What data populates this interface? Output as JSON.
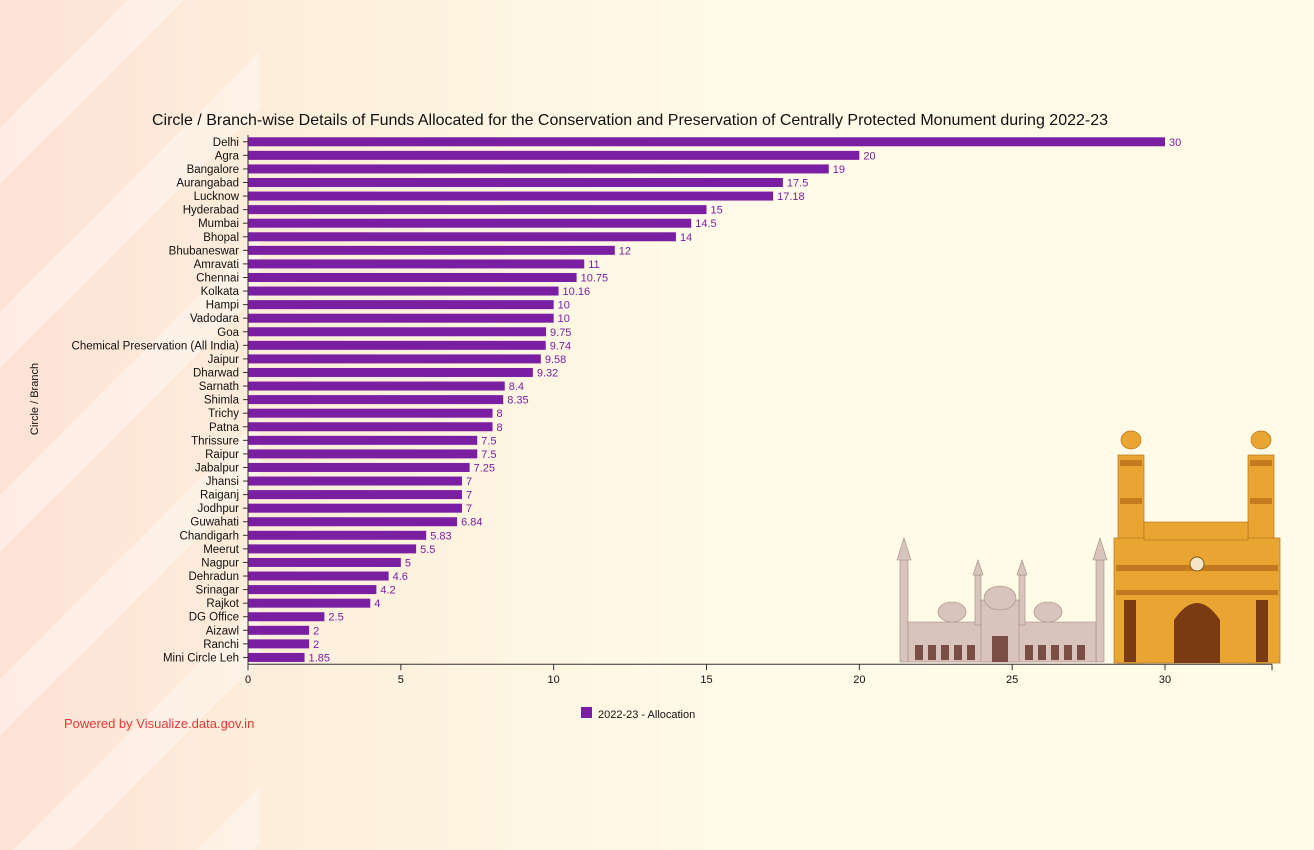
{
  "credit": "Powered by Visualize.data.gov.in",
  "chart_data": {
    "type": "bar",
    "orientation": "horizontal",
    "title": "Circle / Branch-wise Details of Funds Allocated for the Conservation and Preservation of Centrally Protected Monument during 2022-23",
    "xlabel": "",
    "ylabel": "Circle / Branch",
    "xlim": [
      0,
      33.5
    ],
    "xticks": [
      0,
      5,
      10,
      15,
      20,
      25,
      30
    ],
    "grid": false,
    "legend_position": "bottom-center",
    "bar_color": "#7b1fa2",
    "categories": [
      "Delhi",
      "Agra",
      "Bangalore",
      "Aurangabad",
      "Lucknow",
      "Hyderabad",
      "Mumbai",
      "Bhopal",
      "Bhubaneswar",
      "Amravati",
      "Chennai",
      "Kolkata",
      "Hampi",
      "Vadodara",
      "Goa",
      "Chemical Preservation (All India)",
      "Jaipur",
      "Dharwad",
      "Sarnath",
      "Shimla",
      "Trichy",
      "Patna",
      "Thrissure",
      "Raipur",
      "Jabalpur",
      "Jhansi",
      "Raiganj",
      "Jodhpur",
      "Guwahati",
      "Chandigarh",
      "Meerut",
      "Nagpur",
      "Dehradun",
      "Srinagar",
      "Rajkot",
      "DG Office",
      "Aizawl",
      "Ranchi",
      "Mini Circle Leh"
    ],
    "series": [
      {
        "name": "2022-23 - Allocation",
        "values": [
          30,
          20,
          19,
          17.5,
          17.18,
          15,
          14.5,
          14,
          12,
          11,
          10.75,
          10.16,
          10,
          10,
          9.75,
          9.74,
          9.58,
          9.32,
          8.4,
          8.35,
          8,
          8,
          7.5,
          7.5,
          7.25,
          7,
          7,
          7,
          6.84,
          5.83,
          5.5,
          5,
          4.6,
          4.2,
          4,
          2.5,
          2,
          2,
          1.85
        ]
      }
    ]
  }
}
